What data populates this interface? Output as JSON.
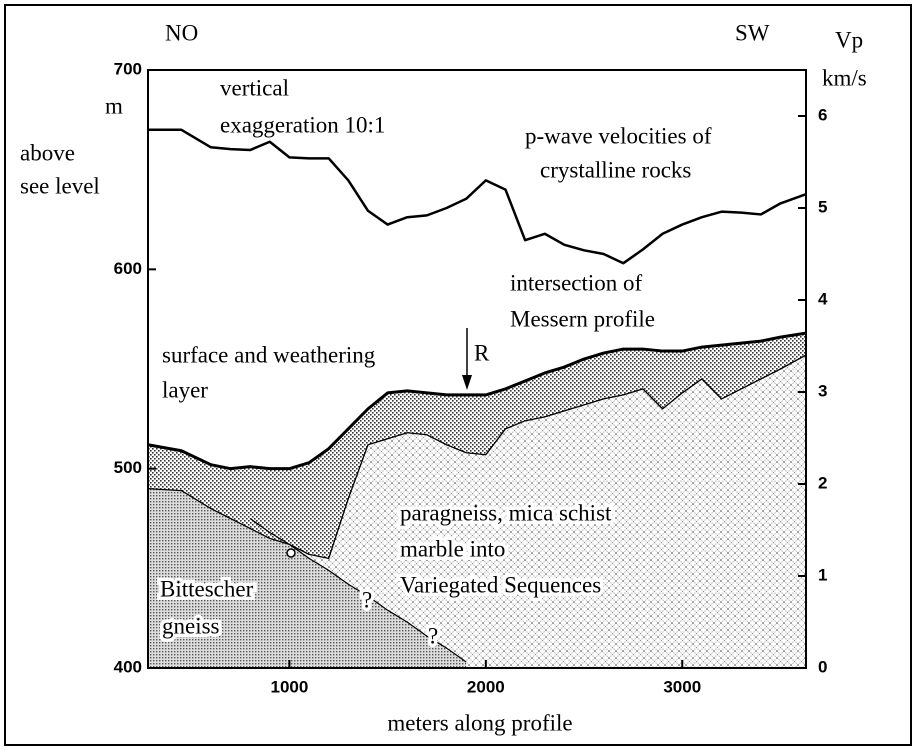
{
  "chart_data": {
    "type": "line",
    "x": [
      280,
      450,
      600,
      700,
      800,
      900,
      1000,
      1100,
      1200,
      1300,
      1400,
      1500,
      1600,
      1700,
      1800,
      1900,
      2000,
      2100,
      2200,
      2300,
      2400,
      2500,
      2600,
      2700,
      2800,
      2900,
      3000,
      3100,
      3200,
      3300,
      3400,
      3500,
      3630
    ],
    "series": [
      {
        "color": "#000000",
        "axis": "y2",
        "values": [
          5.85,
          5.85,
          5.66,
          5.64,
          5.63,
          5.72,
          5.55,
          5.54,
          5.54,
          5.3,
          4.97,
          4.82,
          4.9,
          4.92,
          5.0,
          5.1,
          5.3,
          5.2,
          4.65,
          4.72,
          4.6,
          4.54,
          4.5,
          4.4,
          4.55,
          4.72,
          4.82,
          4.9,
          4.96,
          4.95,
          4.93,
          5.05,
          5.15
        ]
      },
      {
        "color": "#000000",
        "values": [
          512,
          509,
          502,
          500,
          501,
          500,
          500,
          503,
          510,
          520,
          530,
          538,
          539,
          538,
          537,
          537,
          537,
          540,
          544,
          548,
          551,
          555,
          558,
          560,
          560,
          559,
          559,
          561,
          562,
          563,
          564,
          566,
          568
        ]
      },
      {
        "color": "#000000",
        "values": [
          490,
          489,
          480,
          475,
          470,
          465,
          462,
          457,
          455,
          485,
          512,
          515,
          518,
          517,
          512,
          508,
          507,
          520,
          524,
          526,
          529,
          532,
          535,
          537,
          540,
          530,
          538,
          545,
          535,
          540,
          545,
          550,
          557
        ]
      },
      {
        "color": "#000000",
        "values": [
          null,
          null,
          null,
          null,
          475,
          468,
          462,
          455,
          449,
          442,
          436,
          429,
          423,
          416,
          410,
          403,
          null,
          null,
          null,
          null,
          null,
          null,
          null,
          null,
          null,
          null,
          null,
          null,
          null,
          null,
          null,
          null,
          null
        ]
      }
    ],
    "xlabel": "meters along profile",
    "xlim": [
      280,
      3630
    ],
    "xticks": [
      1000,
      2000,
      3000
    ],
    "ylim": [
      400,
      700
    ],
    "yticks": [
      400,
      500,
      600,
      700
    ],
    "y2lim": [
      0,
      6.5
    ],
    "y2ticks": [
      0,
      1,
      2,
      3,
      4,
      5,
      6
    ],
    "annotations": [
      [
        "NO"
      ],
      [
        "SW"
      ],
      [
        "Vp",
        "km/s"
      ],
      [
        "m"
      ],
      [
        "above",
        "see level"
      ],
      [
        "vertical",
        "exaggeration 10:1"
      ],
      [
        "p-wave velocities of",
        "crystalline rocks"
      ],
      [
        "intersection of",
        "Messern profile"
      ],
      [
        "surface and weathering",
        "layer"
      ],
      [
        "R"
      ],
      [
        "paragneiss, mica schist",
        "marble into",
        "Variegated Sequences"
      ],
      [
        "Bittescher",
        "gneiss"
      ],
      [
        "?"
      ],
      [
        "?"
      ]
    ]
  }
}
